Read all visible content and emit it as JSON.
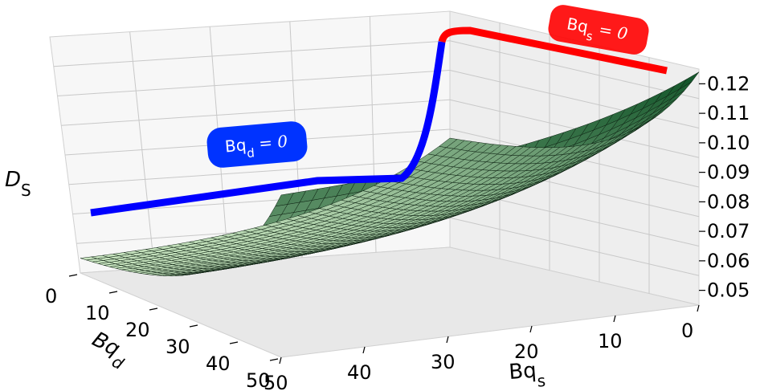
{
  "chart_data": {
    "type": "surface",
    "x_axis": {
      "label_main": "Bq",
      "label_sub": "s",
      "range": [
        0,
        50
      ],
      "ticks": [
        "0",
        "10",
        "20",
        "30",
        "40",
        "50"
      ]
    },
    "y_axis": {
      "label_main": "Bq",
      "label_sub": "d",
      "range": [
        0,
        50
      ],
      "ticks": [
        "0",
        "10",
        "20",
        "30",
        "40",
        "50"
      ]
    },
    "z_axis": {
      "label_main": "D",
      "label_sub": "S",
      "range": [
        0.045,
        0.125
      ],
      "ticks": [
        "0.05",
        "0.06",
        "0.07",
        "0.08",
        "0.09",
        "0.10",
        "0.11",
        "0.12"
      ]
    },
    "surface": {
      "colormap": "Greens",
      "grid": [
        [
          "",
          0,
          0.124
        ],
        [
          "",
          0,
          0.1
        ],
        [
          "",
          50,
          0.082
        ],
        [
          "",
          50,
          0.05
        ]
      ],
      "corners": {
        "Bqs_0_Bqd_0": 0.124,
        "Bqs_0_Bqd_50": 0.1,
        "Bqs_50_Bqd_0": 0.082,
        "Bqs_50_Bqd_50": 0.05
      }
    },
    "annotations": [
      {
        "text_main": "Bq",
        "text_sub": "s",
        "text_rest": " = 0",
        "color": "#ff0000"
      },
      {
        "text_main": "Bq",
        "text_sub": "d",
        "text_rest": " = 0",
        "color": "#0000ff"
      }
    ],
    "colors": {
      "curve_red": "#ff0000",
      "curve_blue": "#0000ff",
      "grid_line": "#c8c8c8",
      "pane_fill": "#f2f2f2"
    }
  }
}
